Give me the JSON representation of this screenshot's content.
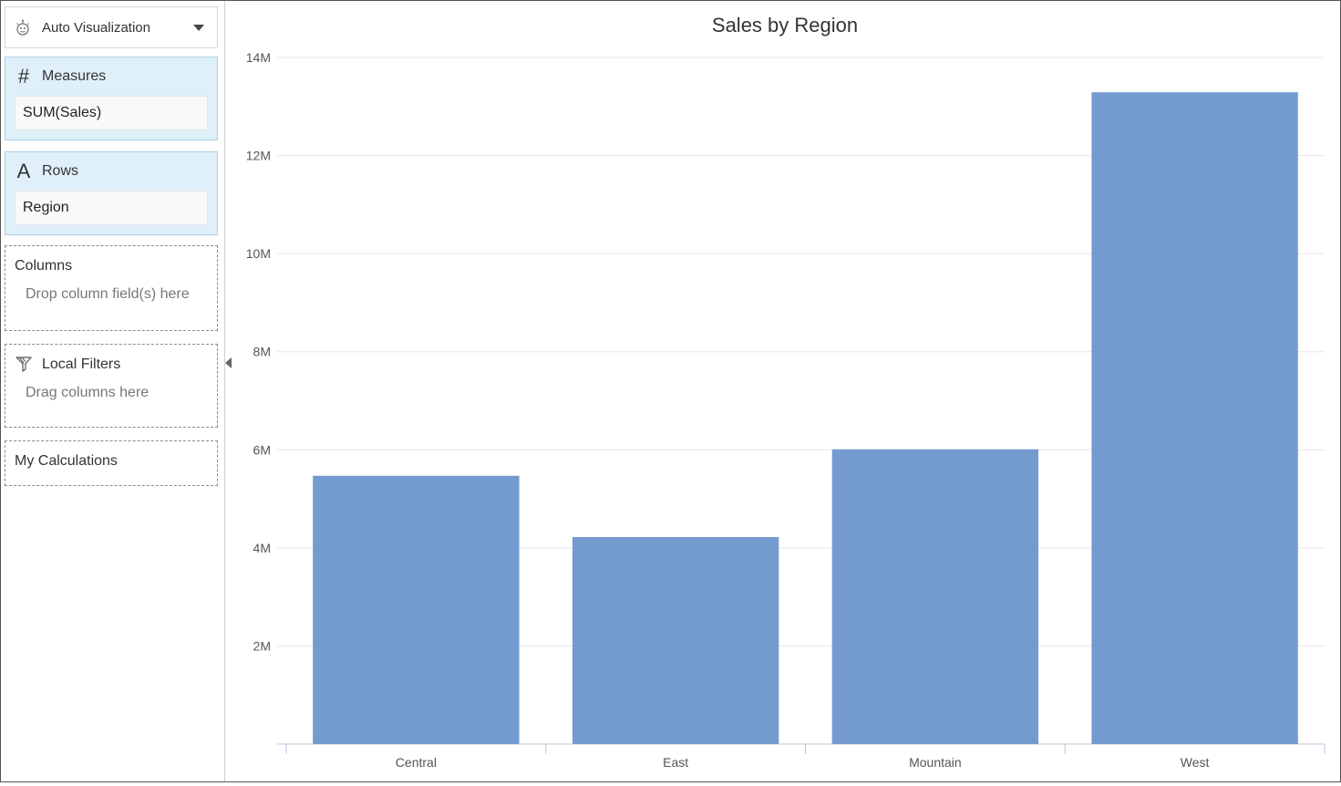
{
  "sidebar": {
    "visualization": {
      "label": "Auto Visualization",
      "icon": "auto-visualization-icon"
    },
    "measures": {
      "title": "Measures",
      "icon": "#",
      "field": "SUM(Sales)"
    },
    "rows": {
      "title": "Rows",
      "icon": "A",
      "field": "Region"
    },
    "columns": {
      "title": "Columns",
      "hint": "Drop column field(s) here"
    },
    "local_filters": {
      "title": "Local Filters",
      "hint": "Drag columns here"
    },
    "calculations": {
      "title": "My Calculations"
    }
  },
  "colors": {
    "bar": "#749bcf",
    "grid": "#e3e7ee",
    "axis": "#b9c7db",
    "panel_bg": "#dff0fa"
  },
  "chart_data": {
    "type": "bar",
    "title": "Sales by Region",
    "categories": [
      "Central",
      "East",
      "Mountain",
      "West"
    ],
    "values": [
      5470000,
      4220000,
      6010000,
      13290000
    ],
    "ylim": [
      0,
      14000000
    ],
    "yticks": [
      2000000,
      4000000,
      6000000,
      8000000,
      10000000,
      12000000,
      14000000
    ],
    "ytick_labels": [
      "2M",
      "4M",
      "6M",
      "8M",
      "10M",
      "12M",
      "14M"
    ],
    "xlabel": "",
    "ylabel": "",
    "grid": true
  }
}
